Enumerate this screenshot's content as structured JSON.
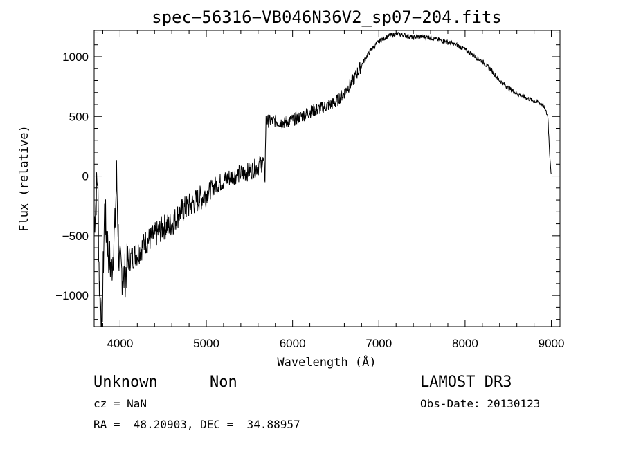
{
  "chart_data": {
    "type": "line",
    "title": "spec−56316−VB046N36V2_sp07−204.fits",
    "xlabel": "Wavelength (Å)",
    "ylabel": "Flux (relative)",
    "xlim": [
      3700,
      9100
    ],
    "ylim": [
      -1260,
      1220
    ],
    "x_ticks": [
      4000,
      5000,
      6000,
      7000,
      8000,
      9000
    ],
    "x_tick_labels": [
      "4000",
      "5000",
      "6000",
      "7000",
      "8000",
      "9000"
    ],
    "y_ticks": [
      -1000,
      -500,
      0,
      500,
      1000
    ],
    "y_tick_labels": [
      "−1000",
      "−500",
      "0",
      "500",
      "1000"
    ],
    "series": [
      {
        "name": "flux",
        "anchors": [
          [
            3700,
            -400
          ],
          [
            3740,
            0
          ],
          [
            3760,
            -900
          ],
          [
            3790,
            -1260
          ],
          [
            3820,
            -300
          ],
          [
            3860,
            -600
          ],
          [
            3900,
            -800
          ],
          [
            3940,
            -450
          ],
          [
            3960,
            0
          ],
          [
            3990,
            -750
          ],
          [
            4050,
            -850
          ],
          [
            4100,
            -700
          ],
          [
            4200,
            -650
          ],
          [
            4300,
            -550
          ],
          [
            4400,
            -500
          ],
          [
            4500,
            -430
          ],
          [
            4600,
            -400
          ],
          [
            4700,
            -300
          ],
          [
            4800,
            -250
          ],
          [
            4900,
            -200
          ],
          [
            5000,
            -150
          ],
          [
            5100,
            -80
          ],
          [
            5200,
            -40
          ],
          [
            5300,
            0
          ],
          [
            5400,
            20
          ],
          [
            5500,
            40
          ],
          [
            5600,
            80
          ],
          [
            5660,
            120
          ],
          [
            5680,
            0
          ],
          [
            5690,
            460
          ],
          [
            5800,
            460
          ],
          [
            5900,
            450
          ],
          [
            6000,
            470
          ],
          [
            6100,
            500
          ],
          [
            6200,
            540
          ],
          [
            6300,
            560
          ],
          [
            6400,
            590
          ],
          [
            6500,
            620
          ],
          [
            6600,
            700
          ],
          [
            6700,
            800
          ],
          [
            6800,
            930
          ],
          [
            6900,
            1050
          ],
          [
            7000,
            1130
          ],
          [
            7100,
            1170
          ],
          [
            7200,
            1190
          ],
          [
            7300,
            1180
          ],
          [
            7400,
            1160
          ],
          [
            7500,
            1170
          ],
          [
            7600,
            1160
          ],
          [
            7700,
            1140
          ],
          [
            7800,
            1120
          ],
          [
            7900,
            1100
          ],
          [
            8000,
            1060
          ],
          [
            8100,
            1010
          ],
          [
            8200,
            960
          ],
          [
            8300,
            890
          ],
          [
            8400,
            800
          ],
          [
            8500,
            740
          ],
          [
            8600,
            690
          ],
          [
            8700,
            660
          ],
          [
            8800,
            630
          ],
          [
            8900,
            600
          ],
          [
            8960,
            500
          ],
          [
            8980,
            200
          ],
          [
            9000,
            0
          ]
        ]
      }
    ]
  },
  "info": {
    "object_type": "Unknown",
    "subclass": "Non",
    "survey": "LAMOST DR3",
    "cz": "cz = NaN",
    "obs_date": "Obs-Date: 20130123",
    "coords": "RA =  48.20903, DEC =  34.88957"
  }
}
